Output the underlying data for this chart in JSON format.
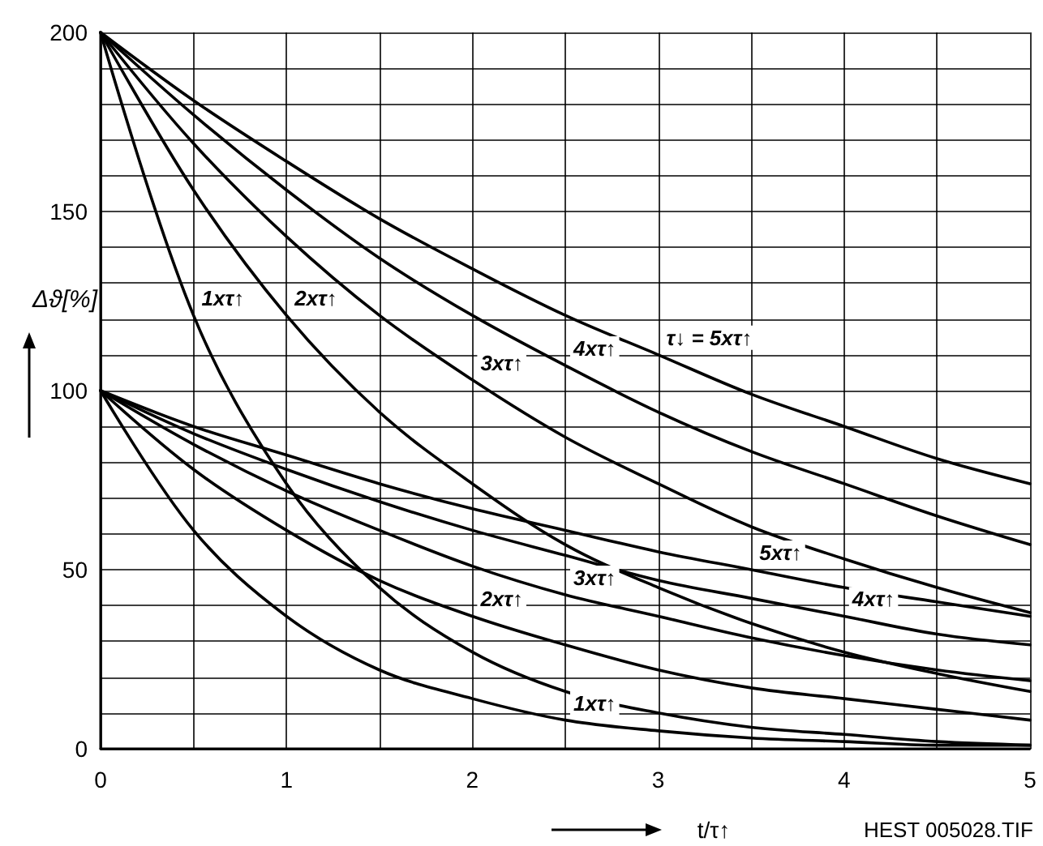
{
  "chart_data": {
    "type": "line",
    "xlabel": "t/τ↑",
    "ylabel": "Δϑ[%]",
    "x": [
      0,
      0.5,
      1,
      1.5,
      2,
      2.5,
      3,
      3.5,
      4,
      4.5,
      5
    ],
    "series": [
      {
        "color": "#000000",
        "values": [
          200,
          121,
          74,
          45,
          27,
          16,
          10,
          6,
          4,
          2,
          1
        ]
      },
      {
        "color": "#000000",
        "values": [
          200,
          156,
          121,
          94,
          74,
          57,
          45,
          35,
          27,
          21,
          16
        ]
      },
      {
        "color": "#000000",
        "values": [
          200,
          169,
          143,
          121,
          103,
          87,
          74,
          62,
          53,
          45,
          38
        ]
      },
      {
        "color": "#000000",
        "values": [
          200,
          177,
          156,
          137,
          121,
          107,
          94,
          83,
          74,
          65,
          57
        ]
      },
      {
        "color": "#000000",
        "values": [
          200,
          181,
          164,
          148,
          134,
          121,
          110,
          99,
          90,
          81,
          74
        ]
      },
      {
        "color": "#000000",
        "values": [
          100,
          61,
          37,
          22,
          14,
          8,
          5,
          3,
          2,
          1,
          1
        ]
      },
      {
        "color": "#000000",
        "values": [
          100,
          78,
          61,
          47,
          37,
          29,
          22,
          17,
          14,
          11,
          8
        ]
      },
      {
        "color": "#000000",
        "values": [
          100,
          85,
          72,
          61,
          51,
          43,
          37,
          31,
          26,
          22,
          19
        ]
      },
      {
        "color": "#000000",
        "values": [
          100,
          88,
          78,
          69,
          61,
          54,
          47,
          42,
          37,
          32,
          29
        ]
      },
      {
        "color": "#000000",
        "values": [
          100,
          90,
          82,
          74,
          67,
          61,
          55,
          50,
          45,
          41,
          37
        ]
      }
    ],
    "xlim": [
      0,
      5
    ],
    "xticks": [
      0,
      {
        "value": 0.5,
        "label": null
      },
      1,
      {
        "value": 1.5,
        "label": null
      },
      2,
      {
        "value": 2.5,
        "label": null
      },
      3,
      {
        "value": 3.5,
        "label": null
      },
      4,
      {
        "value": 4.5,
        "label": null
      },
      5
    ],
    "ylim": [
      0,
      200
    ],
    "yticks": [
      0,
      {
        "value": 10,
        "label": null
      },
      {
        "value": 20,
        "label": null
      },
      {
        "value": 30,
        "label": null
      },
      {
        "value": 40,
        "label": null
      },
      50,
      {
        "value": 60,
        "label": null
      },
      {
        "value": 70,
        "label": null
      },
      {
        "value": 80,
        "label": null
      },
      {
        "value": 90,
        "label": null
      },
      100,
      {
        "value": 110,
        "label": null
      },
      {
        "value": 120,
        "label": null
      },
      {
        "value": 130,
        "label": null
      },
      {
        "value": 140,
        "label": null
      },
      150,
      {
        "value": 160,
        "label": null
      },
      {
        "value": 170,
        "label": null
      },
      {
        "value": 180,
        "label": null
      },
      {
        "value": 190,
        "label": null
      },
      200
    ],
    "grid": true,
    "marker": "none",
    "line_style": "solid",
    "annotations": [
      {
        "text": "1xτ↑",
        "x": 0.5,
        "y": 121
      },
      {
        "text": "2xτ↑",
        "x": 1,
        "y": 121
      },
      {
        "text": "3xτ↑",
        "x": 2,
        "y": 103
      },
      {
        "text": "4xτ↑",
        "x": 2.5,
        "y": 107
      },
      {
        "text": "τ↓ = 5xτ↑",
        "x": 3,
        "y": 110
      },
      {
        "text": "1xτ↑",
        "x": 2.5,
        "y": 8
      },
      {
        "text": "2xτ↑",
        "x": 2,
        "y": 37
      },
      {
        "text": "3xτ↑",
        "x": 2.5,
        "y": 43
      },
      {
        "text": "4xτ↑",
        "x": 4,
        "y": 37
      },
      {
        "text": "5xτ↑",
        "x": 3.5,
        "y": 50
      },
      "HEST 005028.TIF"
    ]
  }
}
